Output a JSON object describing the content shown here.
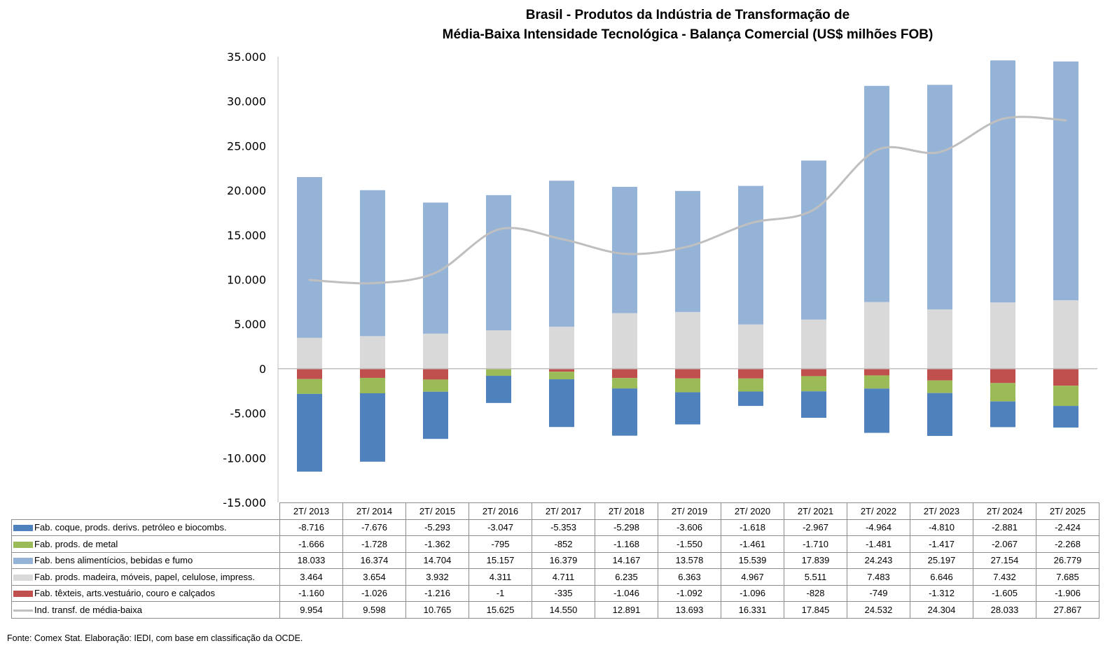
{
  "chart_data": {
    "type": "bar",
    "subtype": "stacked-bar-with-line",
    "title": [
      "Brasil - Produtos da Indústria de Transformação de",
      "Média-Baixa Intensidade Tecnológica - Balança Comercial (US$ milhões FOB)"
    ],
    "xlabel": "",
    "ylabel": "",
    "ylim": [
      -15000,
      35000
    ],
    "yticks": [
      35000,
      30000,
      25000,
      20000,
      15000,
      10000,
      5000,
      0,
      -5000,
      -10000,
      -15000
    ],
    "ytick_labels": [
      "35.000",
      "30.000",
      "25.000",
      "20.000",
      "15.000",
      "10.000",
      "5.000",
      "0",
      "-5.000",
      "-10.000",
      "-15.000"
    ],
    "grid": false,
    "legend": "data-table-below",
    "categories": [
      "2T/ 2013",
      "2T/ 2014",
      "2T/ 2015",
      "2T/ 2016",
      "2T/ 2017",
      "2T/ 2018",
      "2T/ 2019",
      "2T/ 2020",
      "2T/ 2021",
      "2T/ 2022",
      "2T/ 2023",
      "2T/ 2024",
      "2T/ 2025"
    ],
    "series": [
      {
        "name": "Fab. coque, prods. derivs. petróleo e biocombs.",
        "kind": "bar",
        "color": "#4f81bd",
        "values": [
          -8716,
          -7676,
          -5293,
          -3047,
          -5353,
          -5298,
          -3606,
          -1618,
          -2967,
          -4964,
          -4810,
          -2881,
          -2424
        ],
        "labels": [
          "-8.716",
          "-7.676",
          "-5.293",
          "-3.047",
          "-5.353",
          "-5.298",
          "-3.606",
          "-1.618",
          "-2.967",
          "-4.964",
          "-4.810",
          "-2.881",
          "-2.424"
        ]
      },
      {
        "name": "Fab. prods. de metal",
        "kind": "bar",
        "color": "#9bbb59",
        "values": [
          -1666,
          -1728,
          -1362,
          -795,
          -852,
          -1168,
          -1550,
          -1461,
          -1710,
          -1481,
          -1417,
          -2067,
          -2268
        ],
        "labels": [
          "-1.666",
          "-1.728",
          "-1.362",
          "-795",
          "-852",
          "-1.168",
          "-1.550",
          "-1.461",
          "-1.710",
          "-1.481",
          "-1.417",
          "-2.067",
          "-2.268"
        ]
      },
      {
        "name": "Fab. bens alimentícios, bebidas e fumo",
        "kind": "bar",
        "color": "#95b3d7",
        "values": [
          18033,
          16374,
          14704,
          15157,
          16379,
          14167,
          13578,
          15539,
          17839,
          24243,
          25197,
          27154,
          26779
        ],
        "labels": [
          "18.033",
          "16.374",
          "14.704",
          "15.157",
          "16.379",
          "14.167",
          "13.578",
          "15.539",
          "17.839",
          "24.243",
          "25.197",
          "27.154",
          "26.779"
        ]
      },
      {
        "name": "Fab. prods. madeira, móveis, papel, celulose, impress.",
        "kind": "bar",
        "color": "#d9d9d9",
        "values": [
          3464,
          3654,
          3932,
          4311,
          4711,
          6235,
          6363,
          4967,
          5511,
          7483,
          6646,
          7432,
          7685
        ],
        "labels": [
          "3.464",
          "3.654",
          "3.932",
          "4.311",
          "4.711",
          "6.235",
          "6.363",
          "4.967",
          "5.511",
          "7.483",
          "6.646",
          "7.432",
          "7.685"
        ]
      },
      {
        "name": "Fab. têxteis, arts.vestuário, couro e calçados",
        "kind": "bar",
        "color": "#c0504d",
        "values": [
          -1160,
          -1026,
          -1216,
          -1,
          -335,
          -1046,
          -1092,
          -1096,
          -828,
          -749,
          -1312,
          -1605,
          -1906
        ],
        "labels": [
          "-1.160",
          "-1.026",
          "-1.216",
          "-1",
          "-335",
          "-1.046",
          "-1.092",
          "-1.096",
          "-828",
          "-749",
          "-1.312",
          "-1.605",
          "-1.906"
        ]
      },
      {
        "name": "Ind. transf. de média-baixa",
        "kind": "line",
        "color": "#bfbfbf",
        "values": [
          9954,
          9598,
          10765,
          15625,
          14550,
          12891,
          13693,
          16331,
          17845,
          24532,
          24304,
          28033,
          27867
        ],
        "labels": [
          "9.954",
          "9.598",
          "10.765",
          "15.625",
          "14.550",
          "12.891",
          "13.693",
          "16.331",
          "17.845",
          "24.532",
          "24.304",
          "28.033",
          "27.867"
        ]
      }
    ],
    "stack_order_positive": [
      3,
      2
    ],
    "stack_order_negative": [
      4,
      1,
      0
    ]
  },
  "source_note": "Fonte: Comex Stat. Elaboração: IEDI, com base em classificação da OCDE."
}
